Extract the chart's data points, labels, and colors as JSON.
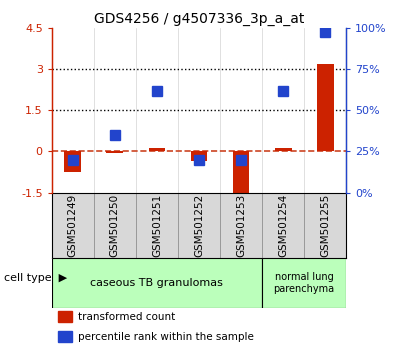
{
  "title": "GDS4256 / g4507336_3p_a_at",
  "samples": [
    "GSM501249",
    "GSM501250",
    "GSM501251",
    "GSM501252",
    "GSM501253",
    "GSM501254",
    "GSM501255"
  ],
  "transformed_count": [
    -0.75,
    -0.05,
    0.12,
    -0.35,
    -1.55,
    0.12,
    3.2
  ],
  "percentile_rank": [
    20,
    35,
    62,
    20,
    20,
    62,
    98
  ],
  "ylim_left": [
    -1.5,
    4.5
  ],
  "ylim_right": [
    0,
    100
  ],
  "yticks_left": [
    -1.5,
    0,
    1.5,
    3,
    4.5
  ],
  "yticks_right": [
    0,
    25,
    50,
    75,
    100
  ],
  "ytick_labels_left": [
    "-1.5",
    "0",
    "1.5",
    "3",
    "4.5"
  ],
  "ytick_labels_right": [
    "0%",
    "25%",
    "50%",
    "75%",
    "100%"
  ],
  "hlines": [
    3.0,
    1.5
  ],
  "zero_line_y": 0,
  "red_color": "#cc2200",
  "blue_color": "#2244cc",
  "dashed_line_color": "#cc4422",
  "group1_label": "caseous TB granulomas",
  "group2_label": "normal lung\nparenchyma",
  "group_color": "#bbffbb",
  "cell_type_label": "cell type  ▶",
  "legend_red": "transformed count",
  "legend_blue": "percentile rank within the sample",
  "bar_width": 0.4,
  "marker_size": 7
}
